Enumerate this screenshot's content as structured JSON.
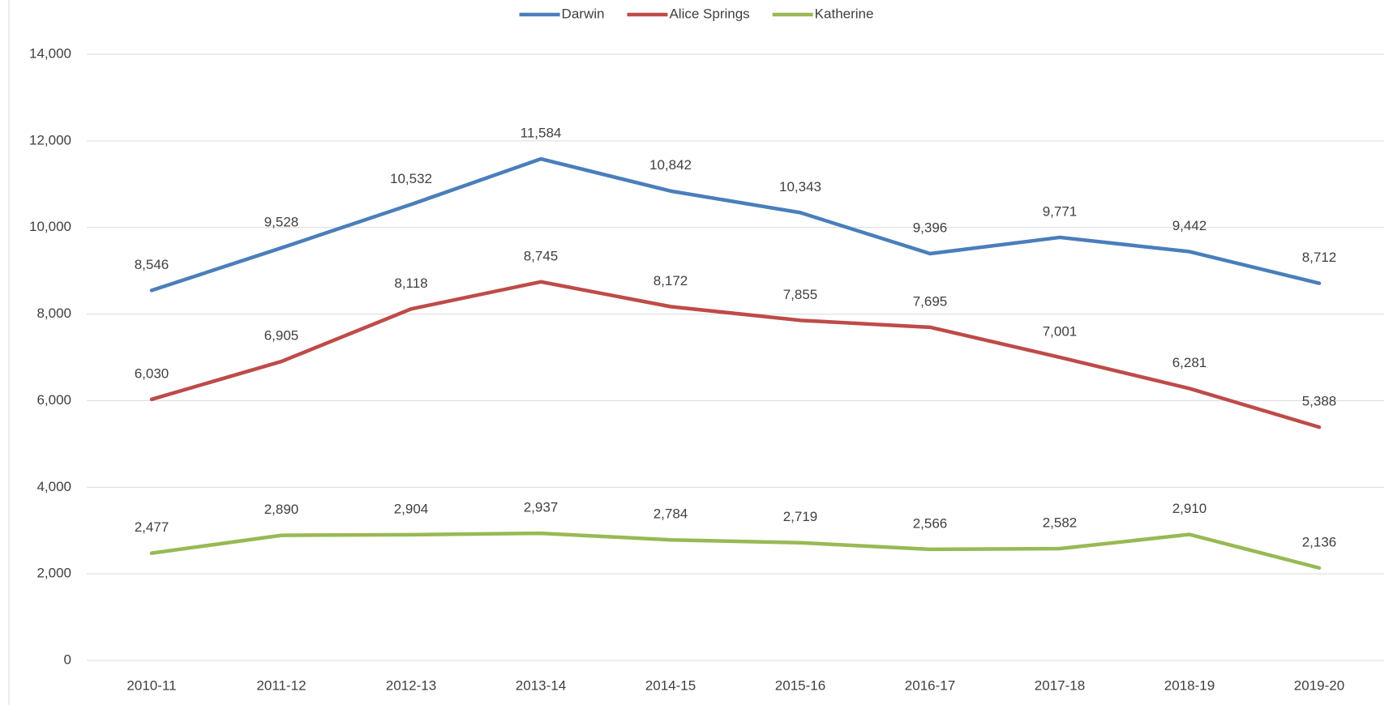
{
  "chart_data": {
    "type": "line",
    "categories": [
      "2010-11",
      "2011-12",
      "2012-13",
      "2013-14",
      "2014-15",
      "2015-16",
      "2016-17",
      "2017-18",
      "2018-19",
      "2019-20"
    ],
    "series": [
      {
        "name": "Darwin",
        "color": "#4a7ebb",
        "values": [
          8546,
          9528,
          10532,
          11584,
          10842,
          10343,
          9396,
          9771,
          9442,
          8712
        ],
        "value_labels": [
          "8,546",
          "9,528",
          "10,532",
          "11,584",
          "10,842",
          "10,343",
          "9,396",
          "9,771",
          "9,442",
          "8,712"
        ]
      },
      {
        "name": "Alice Springs",
        "color": "#be4b48",
        "values": [
          6030,
          6905,
          8118,
          8745,
          8172,
          7855,
          7695,
          7001,
          6281,
          5388
        ],
        "value_labels": [
          "6,030",
          "6,905",
          "8,118",
          "8,745",
          "8,172",
          "7,855",
          "7,695",
          "7,001",
          "6,281",
          "5,388"
        ]
      },
      {
        "name": "Katherine",
        "color": "#98b954",
        "values": [
          2477,
          2890,
          2904,
          2937,
          2784,
          2719,
          2566,
          2582,
          2910,
          2136
        ],
        "value_labels": [
          "2,477",
          "2,890",
          "2,904",
          "2,937",
          "2,784",
          "2,719",
          "2,566",
          "2,582",
          "2,910",
          "2,136"
        ]
      }
    ],
    "ylim": [
      0,
      14000
    ],
    "yticks": [
      0,
      {
        "value": 2000,
        "label": "2,000"
      },
      {
        "value": 4000,
        "label": "4,000"
      },
      {
        "value": 6000,
        "label": "6,000"
      },
      {
        "value": 8000,
        "label": "8,000"
      },
      {
        "value": 10000,
        "label": "10,000"
      },
      {
        "value": 12000,
        "label": "12,000"
      },
      {
        "value": 14000,
        "label": "14,000"
      }
    ],
    "grid": true,
    "legend": "top"
  }
}
